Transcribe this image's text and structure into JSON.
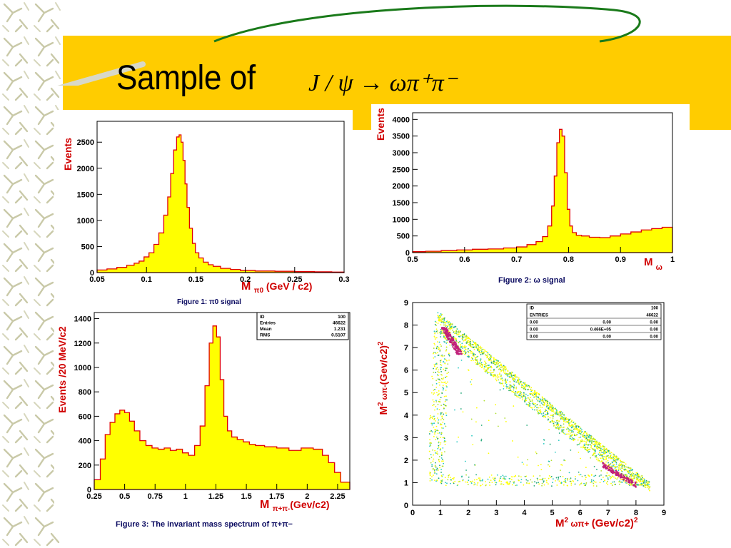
{
  "slide": {
    "title": "Sample of",
    "formula": "J / ψ → ωπ⁺π⁻",
    "colors": {
      "band": "#ffcc00",
      "hist_fill": "#ffff00",
      "hist_line": "#e00000",
      "axis_label": "#d00000",
      "arc": "#1a7a1a"
    }
  },
  "chart_data": [
    {
      "type": "bar",
      "ylabel": "Events",
      "xlabel_parts": [
        "M",
        "π0",
        "(GeV / c2)"
      ],
      "caption": "Figure 1: π0 signal",
      "xlim": [
        0.05,
        0.3
      ],
      "ylim": [
        0,
        2900
      ],
      "xticks": [
        "0.05",
        "0.1",
        "0.15",
        "0.2",
        "0.25",
        "0.3"
      ],
      "yticks": [
        "0",
        "500",
        "1000",
        "1500",
        "2000",
        "2500"
      ],
      "x": [
        0.055,
        0.065,
        0.075,
        0.085,
        0.09,
        0.095,
        0.1,
        0.105,
        0.11,
        0.115,
        0.12,
        0.123,
        0.126,
        0.129,
        0.132,
        0.134,
        0.136,
        0.138,
        0.14,
        0.142,
        0.145,
        0.148,
        0.151,
        0.155,
        0.16,
        0.165,
        0.17,
        0.18,
        0.19,
        0.2,
        0.22,
        0.24,
        0.26,
        0.28,
        0.295
      ],
      "values": [
        50,
        70,
        100,
        140,
        180,
        220,
        300,
        380,
        540,
        760,
        1100,
        1450,
        1900,
        2350,
        2600,
        2640,
        2500,
        2150,
        1700,
        1250,
        850,
        560,
        380,
        280,
        200,
        150,
        120,
        80,
        60,
        40,
        30,
        25,
        20,
        15,
        10
      ]
    },
    {
      "type": "bar",
      "ylabel": "Events",
      "xlabel_parts": [
        "M",
        "ω"
      ],
      "caption": "Figure 2: ω signal",
      "xlim": [
        0.5,
        1.0
      ],
      "ylim": [
        0,
        4200
      ],
      "xticks": [
        "0.5",
        "0.6",
        "0.7",
        "0.8",
        "0.9",
        "1"
      ],
      "yticks": [
        "0",
        "500",
        "1000",
        "1500",
        "2000",
        "2500",
        "3000",
        "3500",
        "4000"
      ],
      "x": [
        0.51,
        0.54,
        0.57,
        0.6,
        0.63,
        0.66,
        0.69,
        0.71,
        0.73,
        0.745,
        0.755,
        0.765,
        0.77,
        0.775,
        0.78,
        0.785,
        0.79,
        0.795,
        0.8,
        0.805,
        0.81,
        0.82,
        0.83,
        0.85,
        0.87,
        0.89,
        0.91,
        0.93,
        0.95,
        0.97,
        0.99
      ],
      "values": [
        30,
        40,
        60,
        80,
        100,
        110,
        140,
        170,
        240,
        330,
        480,
        800,
        1400,
        2300,
        3300,
        3700,
        3500,
        2400,
        1300,
        800,
        600,
        520,
        500,
        460,
        450,
        500,
        560,
        620,
        680,
        720,
        760
      ]
    },
    {
      "type": "bar",
      "ylabel": "Events /20 MeV/c2",
      "xlabel_parts": [
        "M",
        "π+π-",
        "(Gev/c2)"
      ],
      "caption": "Figure 3: The invariant mass spectrum of π+π−",
      "stats": [
        [
          "ID",
          "100"
        ],
        [
          "Entries",
          "46622"
        ],
        [
          "Mean",
          "1.231"
        ],
        [
          "RMS",
          "0.5107"
        ]
      ],
      "xlim": [
        0.25,
        2.35
      ],
      "ylim": [
        0,
        1450
      ],
      "xticks": [
        "0.25",
        "0.5",
        "0.75",
        "1",
        "1.25",
        "1.5",
        "1.75",
        "2",
        "2.25"
      ],
      "yticks": [
        "0",
        "200",
        "400",
        "600",
        "800",
        "1000",
        "1200",
        "1400"
      ],
      "x": [
        0.28,
        0.32,
        0.36,
        0.4,
        0.44,
        0.48,
        0.52,
        0.56,
        0.6,
        0.65,
        0.7,
        0.75,
        0.8,
        0.85,
        0.9,
        0.95,
        1.0,
        1.05,
        1.1,
        1.14,
        1.18,
        1.21,
        1.24,
        1.27,
        1.3,
        1.33,
        1.36,
        1.4,
        1.45,
        1.5,
        1.55,
        1.6,
        1.7,
        1.8,
        1.9,
        2.0,
        2.1,
        2.15,
        2.2,
        2.25,
        2.3
      ],
      "values": [
        80,
        250,
        450,
        550,
        620,
        650,
        630,
        560,
        480,
        400,
        360,
        340,
        330,
        340,
        320,
        330,
        300,
        280,
        360,
        520,
        850,
        1200,
        1340,
        1250,
        900,
        600,
        480,
        430,
        410,
        390,
        370,
        360,
        350,
        340,
        320,
        340,
        330,
        280,
        220,
        140,
        60
      ]
    },
    {
      "type": "scatter",
      "ylabel_parts": [
        "M2",
        "ωπ-",
        "(Gev/c2)2"
      ],
      "xlabel_parts": [
        "M2",
        "ωπ+",
        "(Gev/c2)2"
      ],
      "stats": [
        [
          "ID",
          "",
          "100"
        ],
        [
          "ENTRIES",
          "",
          "46622"
        ],
        [
          "0.00",
          "0.00",
          "0.00"
        ],
        [
          "0.00",
          "0.466E+05",
          "0.00"
        ],
        [
          "0.00",
          "0.00",
          "0.00"
        ]
      ],
      "xlim": [
        0,
        9
      ],
      "ylim": [
        0,
        9
      ],
      "xticks": [
        "0",
        "1",
        "2",
        "3",
        "4",
        "5",
        "6",
        "7",
        "8",
        "9"
      ],
      "yticks": [
        "0",
        "1",
        "2",
        "3",
        "4",
        "5",
        "6",
        "7",
        "8",
        "9"
      ]
    }
  ]
}
